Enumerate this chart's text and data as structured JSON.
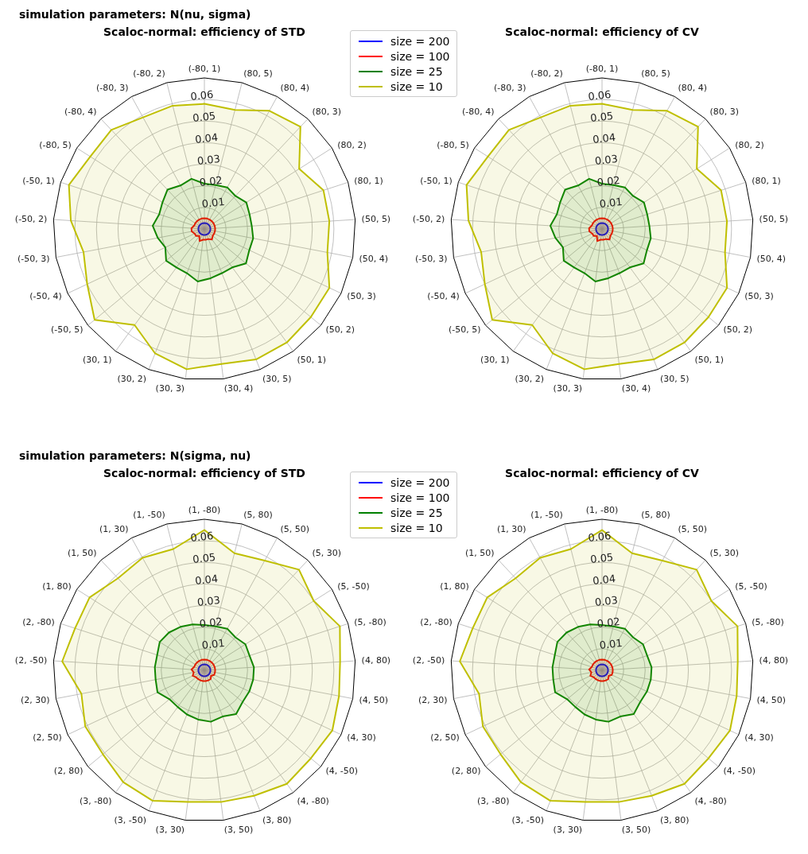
{
  "chart_data": [
    {
      "type": "radar",
      "title": "Scaloc-normal: efficiency of STD",
      "annotations": [
        "simulation parameters: N(nu, sigma)"
      ],
      "categories": [
        "(-80, 1)",
        "(80, 5)",
        "(80, 4)",
        "(80, 3)",
        "(80, 2)",
        "(80, 1)",
        "(50, 5)",
        "(50, 4)",
        "(50, 3)",
        "(50, 2)",
        "(50, 1)",
        "(30, 5)",
        "(30, 4)",
        "(30, 3)",
        "(30, 2)",
        "(30, 1)",
        "(-50, 5)",
        "(-50, 4)",
        "(-50, 3)",
        "(-50, 2)",
        "(-50, 1)",
        "(-80, 5)",
        "(-80, 4)",
        "(-80, 3)",
        "(-80, 2)"
      ],
      "series": [
        {
          "name": "size = 200",
          "color": "#0000ff",
          "values": [
            0.0028,
            0.0028,
            0.0028,
            0.0028,
            0.0028,
            0.0028,
            0.0028,
            0.0028,
            0.0028,
            0.0028,
            0.0028,
            0.0028,
            0.0028,
            0.0028,
            0.0028,
            0.0028,
            0.0028,
            0.0028,
            0.0028,
            0.0028,
            0.0028,
            0.0028,
            0.0028,
            0.0028,
            0.0028
          ]
        },
        {
          "name": "size = 100",
          "color": "#ff0000",
          "values": [
            0.005,
            0.005,
            0.005,
            0.005,
            0.005,
            0.005,
            0.005,
            0.005,
            0.005,
            0.005,
            0.006,
            0.005,
            0.005,
            0.005,
            0.006,
            0.004,
            0.005,
            0.005,
            0.006,
            0.006,
            0.005,
            0.005,
            0.005,
            0.005,
            0.005
          ]
        },
        {
          "name": "size = 25",
          "color": "#008000",
          "values": [
            0.021,
            0.021,
            0.022,
            0.021,
            0.023,
            0.022,
            0.022,
            0.023,
            0.023,
            0.025,
            0.022,
            0.022,
            0.023,
            0.0245,
            0.022,
            0.022,
            0.023,
            0.02,
            0.022,
            0.024,
            0.022,
            0.023,
            0.025,
            0.023,
            0.024
          ]
        },
        {
          "name": "size = 10",
          "color": "#bfbf00",
          "values": [
            0.058,
            0.057,
            0.0625,
            0.065,
            0.052,
            0.058,
            0.058,
            0.058,
            0.064,
            0.064,
            0.065,
            0.065,
            0.063,
            0.0655,
            0.062,
            0.055,
            0.066,
            0.06,
            0.057,
            0.062,
            0.066,
            0.0626,
            0.063,
            0.059,
            0.059
          ]
        }
      ],
      "ylim": [
        0,
        0.07
      ],
      "yticks": [
        0.01,
        0.02,
        0.03,
        0.04,
        0.05,
        0.06
      ],
      "grid": true,
      "legend": "top right",
      "marker": "none"
    },
    {
      "type": "radar",
      "title": "Scaloc-normal: efficiency of CV",
      "categories": [
        "(-80, 1)",
        "(80, 5)",
        "(80, 4)",
        "(80, 3)",
        "(80, 2)",
        "(80, 1)",
        "(50, 5)",
        "(50, 4)",
        "(50, 3)",
        "(50, 2)",
        "(50, 1)",
        "(30, 5)",
        "(30, 4)",
        "(30, 3)",
        "(30, 2)",
        "(30, 1)",
        "(-50, 5)",
        "(-50, 4)",
        "(-50, 3)",
        "(-50, 2)",
        "(-50, 1)",
        "(-80, 5)",
        "(-80, 4)",
        "(-80, 3)",
        "(-80, 2)"
      ],
      "series": [
        {
          "color": "#0000ff",
          "values": [
            0.0028,
            0.0028,
            0.0028,
            0.0028,
            0.0028,
            0.0028,
            0.0028,
            0.0028,
            0.0028,
            0.0028,
            0.0028,
            0.0028,
            0.0028,
            0.0028,
            0.0028,
            0.0028,
            0.0028,
            0.0028,
            0.0028,
            0.0028,
            0.0028,
            0.0028,
            0.0028,
            0.0028,
            0.0028
          ]
        },
        {
          "color": "#ff0000",
          "values": [
            0.005,
            0.005,
            0.005,
            0.005,
            0.005,
            0.005,
            0.005,
            0.005,
            0.005,
            0.005,
            0.006,
            0.005,
            0.005,
            0.005,
            0.006,
            0.004,
            0.005,
            0.005,
            0.006,
            0.006,
            0.005,
            0.005,
            0.005,
            0.005,
            0.005
          ]
        },
        {
          "color": "#008000",
          "values": [
            0.021,
            0.021,
            0.022,
            0.021,
            0.023,
            0.022,
            0.022,
            0.023,
            0.023,
            0.025,
            0.022,
            0.022,
            0.023,
            0.0245,
            0.022,
            0.022,
            0.023,
            0.02,
            0.022,
            0.024,
            0.022,
            0.023,
            0.025,
            0.023,
            0.024
          ]
        },
        {
          "color": "#bfbf00",
          "values": [
            0.058,
            0.057,
            0.0625,
            0.065,
            0.052,
            0.058,
            0.058,
            0.058,
            0.064,
            0.064,
            0.065,
            0.065,
            0.063,
            0.0655,
            0.062,
            0.055,
            0.066,
            0.06,
            0.057,
            0.062,
            0.066,
            0.0626,
            0.063,
            0.059,
            0.059
          ]
        }
      ],
      "ylim": [
        0,
        0.07
      ],
      "yticks": [
        0.01,
        0.02,
        0.03,
        0.04,
        0.05,
        0.06
      ],
      "grid": true,
      "marker": "none"
    },
    {
      "type": "radar",
      "title": "Scaloc-normal: efficiency of STD",
      "annotations": [
        "simulation parameters: N(sigma, nu)"
      ],
      "categories": [
        "(1, -80)",
        "(5, 80)",
        "(5, 50)",
        "(5, 30)",
        "(5, -50)",
        "(5, -80)",
        "(4, 80)",
        "(4, 50)",
        "(4, 30)",
        "(4, -50)",
        "(4, -80)",
        "(3, 80)",
        "(3, 50)",
        "(3, 30)",
        "(3, -50)",
        "(3, -80)",
        "(2, 80)",
        "(2, 50)",
        "(2, 30)",
        "(2, -50)",
        "(2, -80)",
        "(1, 80)",
        "(1, 50)",
        "(1, 30)",
        "(1, -50)"
      ],
      "series": [
        {
          "name": "size = 200",
          "color": "#0000ff",
          "values": [
            0.0028,
            0.0028,
            0.0028,
            0.0028,
            0.0028,
            0.0028,
            0.0028,
            0.0028,
            0.0028,
            0.0028,
            0.0028,
            0.0028,
            0.0028,
            0.0028,
            0.0028,
            0.0028,
            0.0028,
            0.0028,
            0.0028,
            0.0028,
            0.0028,
            0.0028,
            0.0028,
            0.0028,
            0.0028
          ]
        },
        {
          "name": "size = 100",
          "color": "#ff0000",
          "values": [
            0.005,
            0.005,
            0.005,
            0.005,
            0.005,
            0.005,
            0.005,
            0.005,
            0.005,
            0.004,
            0.005,
            0.005,
            0.005,
            0.005,
            0.005,
            0.005,
            0.005,
            0.006,
            0.005,
            0.006,
            0.005,
            0.005,
            0.005,
            0.005,
            0.005
          ]
        },
        {
          "name": "size = 25",
          "color": "#008000",
          "values": [
            0.021,
            0.021,
            0.022,
            0.021,
            0.0225,
            0.022,
            0.023,
            0.023,
            0.023,
            0.023,
            0.025,
            0.023,
            0.024,
            0.023,
            0.022,
            0.021,
            0.021,
            0.024,
            0.023,
            0.023,
            0.023,
            0.0245,
            0.024,
            0.023,
            0.022
          ]
        },
        {
          "name": "size = 10",
          "color": "#bfbf00",
          "values": [
            0.065,
            0.056,
            0.058,
            0.064,
            0.06,
            0.066,
            0.063,
            0.0635,
            0.0655,
            0.064,
            0.065,
            0.0625,
            0.0615,
            0.0615,
            0.065,
            0.064,
            0.061,
            0.061,
            0.058,
            0.066,
            0.063,
            0.063,
            0.0585,
            0.0595,
            0.058
          ]
        }
      ],
      "ylim": [
        0,
        0.07
      ],
      "yticks": [
        0.01,
        0.02,
        0.03,
        0.04,
        0.05,
        0.06
      ],
      "grid": true,
      "legend": "top right",
      "marker": "none"
    },
    {
      "type": "radar",
      "title": "Scaloc-normal: efficiency of CV",
      "categories": [
        "(1, -80)",
        "(5, 80)",
        "(5, 50)",
        "(5, 30)",
        "(5, -50)",
        "(5, -80)",
        "(4, 80)",
        "(4, 50)",
        "(4, 30)",
        "(4, -50)",
        "(4, -80)",
        "(3, 80)",
        "(3, 50)",
        "(3, 30)",
        "(3, -50)",
        "(3, -80)",
        "(2, 80)",
        "(2, 50)",
        "(2, 30)",
        "(2, -50)",
        "(2, -80)",
        "(1, 80)",
        "(1, 50)",
        "(1, 30)",
        "(1, -50)"
      ],
      "series": [
        {
          "color": "#0000ff",
          "values": [
            0.0028,
            0.0028,
            0.0028,
            0.0028,
            0.0028,
            0.0028,
            0.0028,
            0.0028,
            0.0028,
            0.0028,
            0.0028,
            0.0028,
            0.0028,
            0.0028,
            0.0028,
            0.0028,
            0.0028,
            0.0028,
            0.0028,
            0.0028,
            0.0028,
            0.0028,
            0.0028,
            0.0028,
            0.0028
          ]
        },
        {
          "color": "#ff0000",
          "values": [
            0.005,
            0.005,
            0.005,
            0.005,
            0.005,
            0.005,
            0.005,
            0.005,
            0.005,
            0.004,
            0.005,
            0.005,
            0.005,
            0.005,
            0.005,
            0.005,
            0.005,
            0.006,
            0.005,
            0.006,
            0.005,
            0.005,
            0.005,
            0.005,
            0.005
          ]
        },
        {
          "color": "#008000",
          "values": [
            0.021,
            0.021,
            0.022,
            0.021,
            0.0225,
            0.022,
            0.023,
            0.023,
            0.023,
            0.023,
            0.025,
            0.023,
            0.024,
            0.023,
            0.022,
            0.021,
            0.021,
            0.024,
            0.023,
            0.023,
            0.023,
            0.0245,
            0.024,
            0.023,
            0.022
          ]
        },
        {
          "color": "#bfbf00",
          "values": [
            0.065,
            0.056,
            0.058,
            0.064,
            0.06,
            0.066,
            0.063,
            0.0635,
            0.0655,
            0.064,
            0.065,
            0.0625,
            0.0615,
            0.0615,
            0.065,
            0.064,
            0.061,
            0.061,
            0.058,
            0.066,
            0.063,
            0.063,
            0.0585,
            0.0595,
            0.058
          ]
        }
      ],
      "ylim": [
        0,
        0.07
      ],
      "yticks": [
        0.01,
        0.02,
        0.03,
        0.04,
        0.05,
        0.06
      ],
      "grid": true,
      "marker": "none"
    }
  ]
}
